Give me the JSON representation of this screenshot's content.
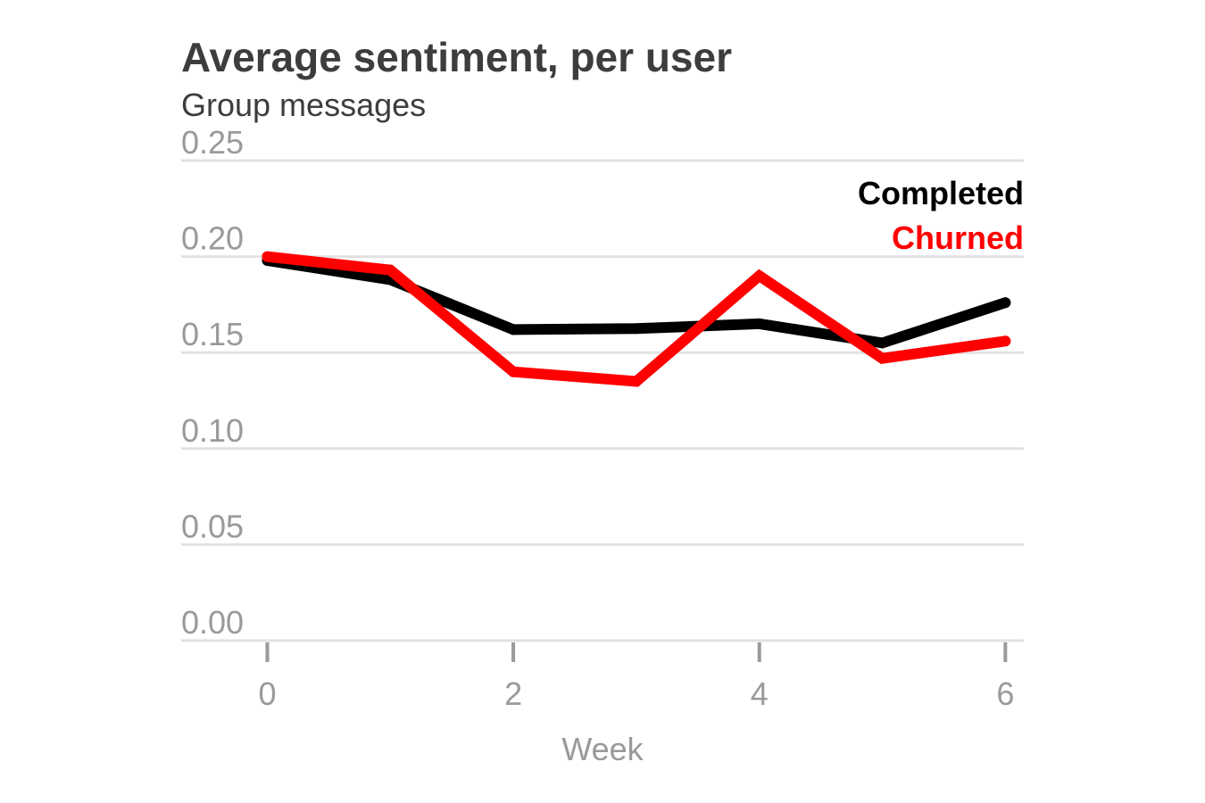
{
  "chart_data": {
    "type": "line",
    "title": "Average sentiment, per user",
    "subtitle": "Group messages",
    "xlabel": "Week",
    "ylabel": "",
    "x": [
      0,
      1,
      2,
      3,
      4,
      5,
      6
    ],
    "xlim": [
      -0.7,
      6.15
    ],
    "ylim": [
      0,
      0.25
    ],
    "x_ticks": [
      0,
      2,
      4,
      6
    ],
    "x_tick_labels": [
      "0",
      "2",
      "4",
      "6"
    ],
    "y_ticks": [
      0,
      0.05,
      0.1,
      0.15,
      0.2,
      0.25
    ],
    "y_tick_labels": [
      "0.00",
      "0.05",
      "0.10",
      "0.15",
      "0.20",
      "0.25"
    ],
    "grid": true,
    "legend_position": "top-right",
    "series": [
      {
        "name": "Completed",
        "color": "#000000",
        "values": [
          0.198,
          0.188,
          0.162,
          0.1625,
          0.165,
          0.155,
          0.176
        ]
      },
      {
        "name": "Churned",
        "color": "#ff0000",
        "values": [
          0.2,
          0.193,
          0.14,
          0.135,
          0.19,
          0.147,
          0.156
        ]
      }
    ]
  }
}
